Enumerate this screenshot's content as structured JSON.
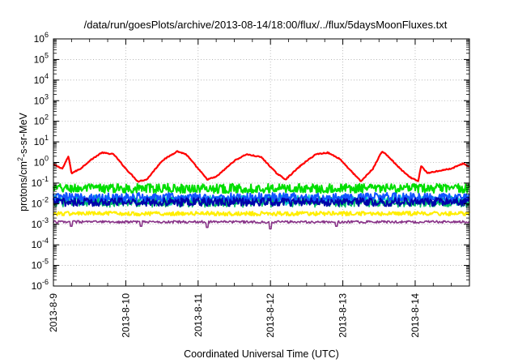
{
  "chart_data": {
    "type": "line",
    "title": "/data/run/goesPlots/archive/2013-08-14/18:00/flux/../flux/5daysMoonFluxes.txt",
    "xlabel": "Coordinated Universal Time (UTC)",
    "ylabel_main": "protons/cm",
    "ylabel_sup": "2",
    "ylabel_rest": "-s-sr-MeV",
    "y_scale": "log",
    "ylim": [
      1e-06,
      1000000.0
    ],
    "y_ticks": [
      {
        "base": "10",
        "exp": "-6",
        "value": -6
      },
      {
        "base": "10",
        "exp": "-5",
        "value": -5
      },
      {
        "base": "10",
        "exp": "-4",
        "value": -4
      },
      {
        "base": "10",
        "exp": "-3",
        "value": -3
      },
      {
        "base": "10",
        "exp": "-2",
        "value": -2
      },
      {
        "base": "10",
        "exp": "-1",
        "value": -1
      },
      {
        "base": "10",
        "exp": "0",
        "value": 0
      },
      {
        "base": "10",
        "exp": "1",
        "value": 1
      },
      {
        "base": "10",
        "exp": "2",
        "value": 2
      },
      {
        "base": "10",
        "exp": "3",
        "value": 3
      },
      {
        "base": "10",
        "exp": "4",
        "value": 4
      },
      {
        "base": "10",
        "exp": "5",
        "value": 5
      },
      {
        "base": "10",
        "exp": "6",
        "value": 6
      }
    ],
    "x_ticks": [
      "2013-8-9",
      "2013-8-10",
      "2013-8-11",
      "2013-8-12",
      "2013-8-13",
      "2013-8-14"
    ],
    "xlim": [
      "2013-08-09 00:00",
      "2013-08-14 18:00"
    ],
    "grid": true,
    "series": [
      {
        "color": "#ff0000",
        "stroke": 2.2,
        "noise": 0.05,
        "points": [
          [
            "2013-08-09 00:00",
            0.8
          ],
          [
            "2013-08-09 03:00",
            0.5
          ],
          [
            "2013-08-09 05:00",
            2.0
          ],
          [
            "2013-08-09 06:00",
            0.3
          ],
          [
            "2013-08-09 09:00",
            0.5
          ],
          [
            "2013-08-09 12:00",
            1.2
          ],
          [
            "2013-08-09 16:00",
            3.0
          ],
          [
            "2013-08-09 20:00",
            2.5
          ],
          [
            "2013-08-10 00:00",
            0.5
          ],
          [
            "2013-08-10 04:00",
            0.12
          ],
          [
            "2013-08-10 07:00",
            0.15
          ],
          [
            "2013-08-10 12:00",
            1.2
          ],
          [
            "2013-08-10 17:00",
            3.5
          ],
          [
            "2013-08-10 20:00",
            2.5
          ],
          [
            "2013-08-11 00:00",
            0.5
          ],
          [
            "2013-08-11 03:00",
            0.15
          ],
          [
            "2013-08-11 06:00",
            0.2
          ],
          [
            "2013-08-11 12:00",
            1.2
          ],
          [
            "2013-08-11 16:00",
            2.5
          ],
          [
            "2013-08-11 21:00",
            1.8
          ],
          [
            "2013-08-12 02:00",
            0.3
          ],
          [
            "2013-08-12 05:00",
            0.15
          ],
          [
            "2013-08-12 10:00",
            0.7
          ],
          [
            "2013-08-12 15:00",
            2.5
          ],
          [
            "2013-08-12 19:00",
            3.0
          ],
          [
            "2013-08-12 23:00",
            1.5
          ],
          [
            "2013-08-13 02:00",
            0.5
          ],
          [
            "2013-08-13 06:00",
            0.12
          ],
          [
            "2013-08-13 10:00",
            0.5
          ],
          [
            "2013-08-13 13:00",
            3.5
          ],
          [
            "2013-08-13 15:00",
            2.0
          ],
          [
            "2013-08-13 19:00",
            0.5
          ],
          [
            "2013-08-13 22:00",
            0.2
          ],
          [
            "2013-08-14 01:00",
            0.12
          ],
          [
            "2013-08-14 02:00",
            0.7
          ],
          [
            "2013-08-14 04:00",
            0.3
          ],
          [
            "2013-08-14 08:00",
            0.4
          ],
          [
            "2013-08-14 12:00",
            0.5
          ],
          [
            "2013-08-14 16:00",
            0.9
          ],
          [
            "2013-08-14 18:00",
            0.6
          ]
        ]
      },
      {
        "color": "#00dd00",
        "stroke": 2.0,
        "base": 0.055,
        "noise": 0.45
      },
      {
        "color": "#00cccc",
        "stroke": 1.5,
        "base": 0.015,
        "noise": 0.5
      },
      {
        "color": "#00bb66",
        "stroke": 1.5,
        "base": 0.012,
        "noise": 0.5
      },
      {
        "color": "#1155ff",
        "stroke": 2.0,
        "base": 0.02,
        "noise": 0.45
      },
      {
        "color": "#0000aa",
        "stroke": 2.0,
        "base": 0.012,
        "noise": 0.4
      },
      {
        "color": "#ffee00",
        "stroke": 2.0,
        "base": 0.0033,
        "noise": 0.2
      },
      {
        "color": "#883388",
        "stroke": 1.6,
        "base": 0.0013,
        "noise": 0.12,
        "dips": [
          [
            "2013-08-09 06:00",
            0.0008
          ],
          [
            "2013-08-10 05:00",
            0.0008
          ],
          [
            "2013-08-11 03:00",
            0.0007
          ],
          [
            "2013-08-12 00:00",
            0.0006
          ],
          [
            "2013-08-12 22:00",
            0.0008
          ]
        ]
      }
    ]
  }
}
